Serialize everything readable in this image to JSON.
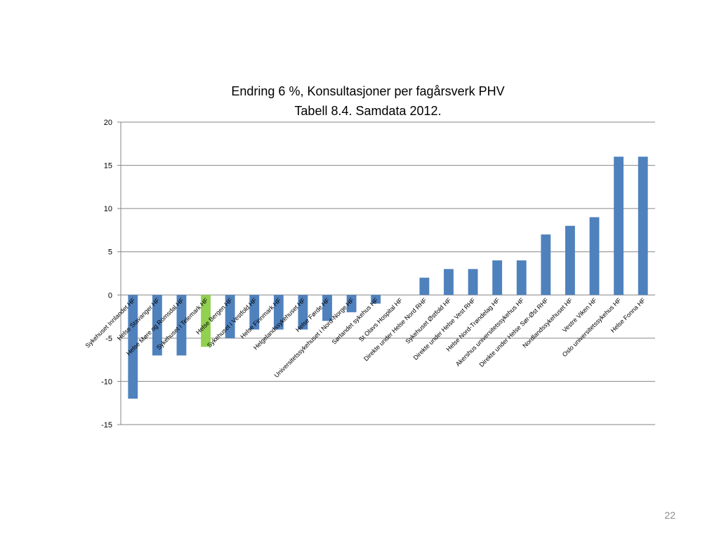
{
  "page": {
    "number": "22"
  },
  "chart_data": {
    "type": "bar",
    "title": "Endring 6 %, Konsultasjoner per fagårsverk PHV",
    "subtitle": "Tabell 8.4. Samdata 2012.",
    "xlabel": "",
    "ylabel": "",
    "ylim": [
      -15,
      20
    ],
    "yticks": [
      20,
      15,
      10,
      5,
      0,
      -5,
      -10,
      -15
    ],
    "grid": true,
    "legend": "none",
    "colors": {
      "default": "#4f81bd",
      "highlight": "#92d050",
      "grid": "#868686"
    },
    "highlight_category": "Sykehuset i Telemark HF",
    "categories": [
      "Sykehuset Innlandet HF",
      "Helse Stavanger HF",
      "Helse Møre og Romsdal HF",
      "Sykehuset i Telemark HF",
      "Helse Bergen HF",
      "Sykehuset i Vestfold HF",
      "Helse Finnmark HF",
      "Helgelandssykehuset HF",
      "Helse Førde HF",
      "Universitetssykehuset i Nord-Norge HF",
      "Sørlandet sykehus HF",
      "St Olavs Hospital HF",
      "Direkte under Helse Nord RHF",
      "Sykehuset Østfold HF",
      "Direkte under Helse Vest RHF",
      "Helse Nord-Trøndelag HF",
      "Akershus universitetssykehus HF",
      "Direkte under Helse Sør-Øst RHF",
      "Nordlandssykehuset HF",
      "Vestre Viken HF",
      "Oslo universitetssykehus HF",
      "Helse Fonna HF"
    ],
    "values": [
      -12,
      -7,
      -7,
      -6,
      -5,
      -4,
      -4,
      -4,
      -3,
      -2,
      -1,
      0,
      2,
      3,
      3,
      4,
      4,
      7,
      8,
      9,
      16,
      16
    ]
  }
}
